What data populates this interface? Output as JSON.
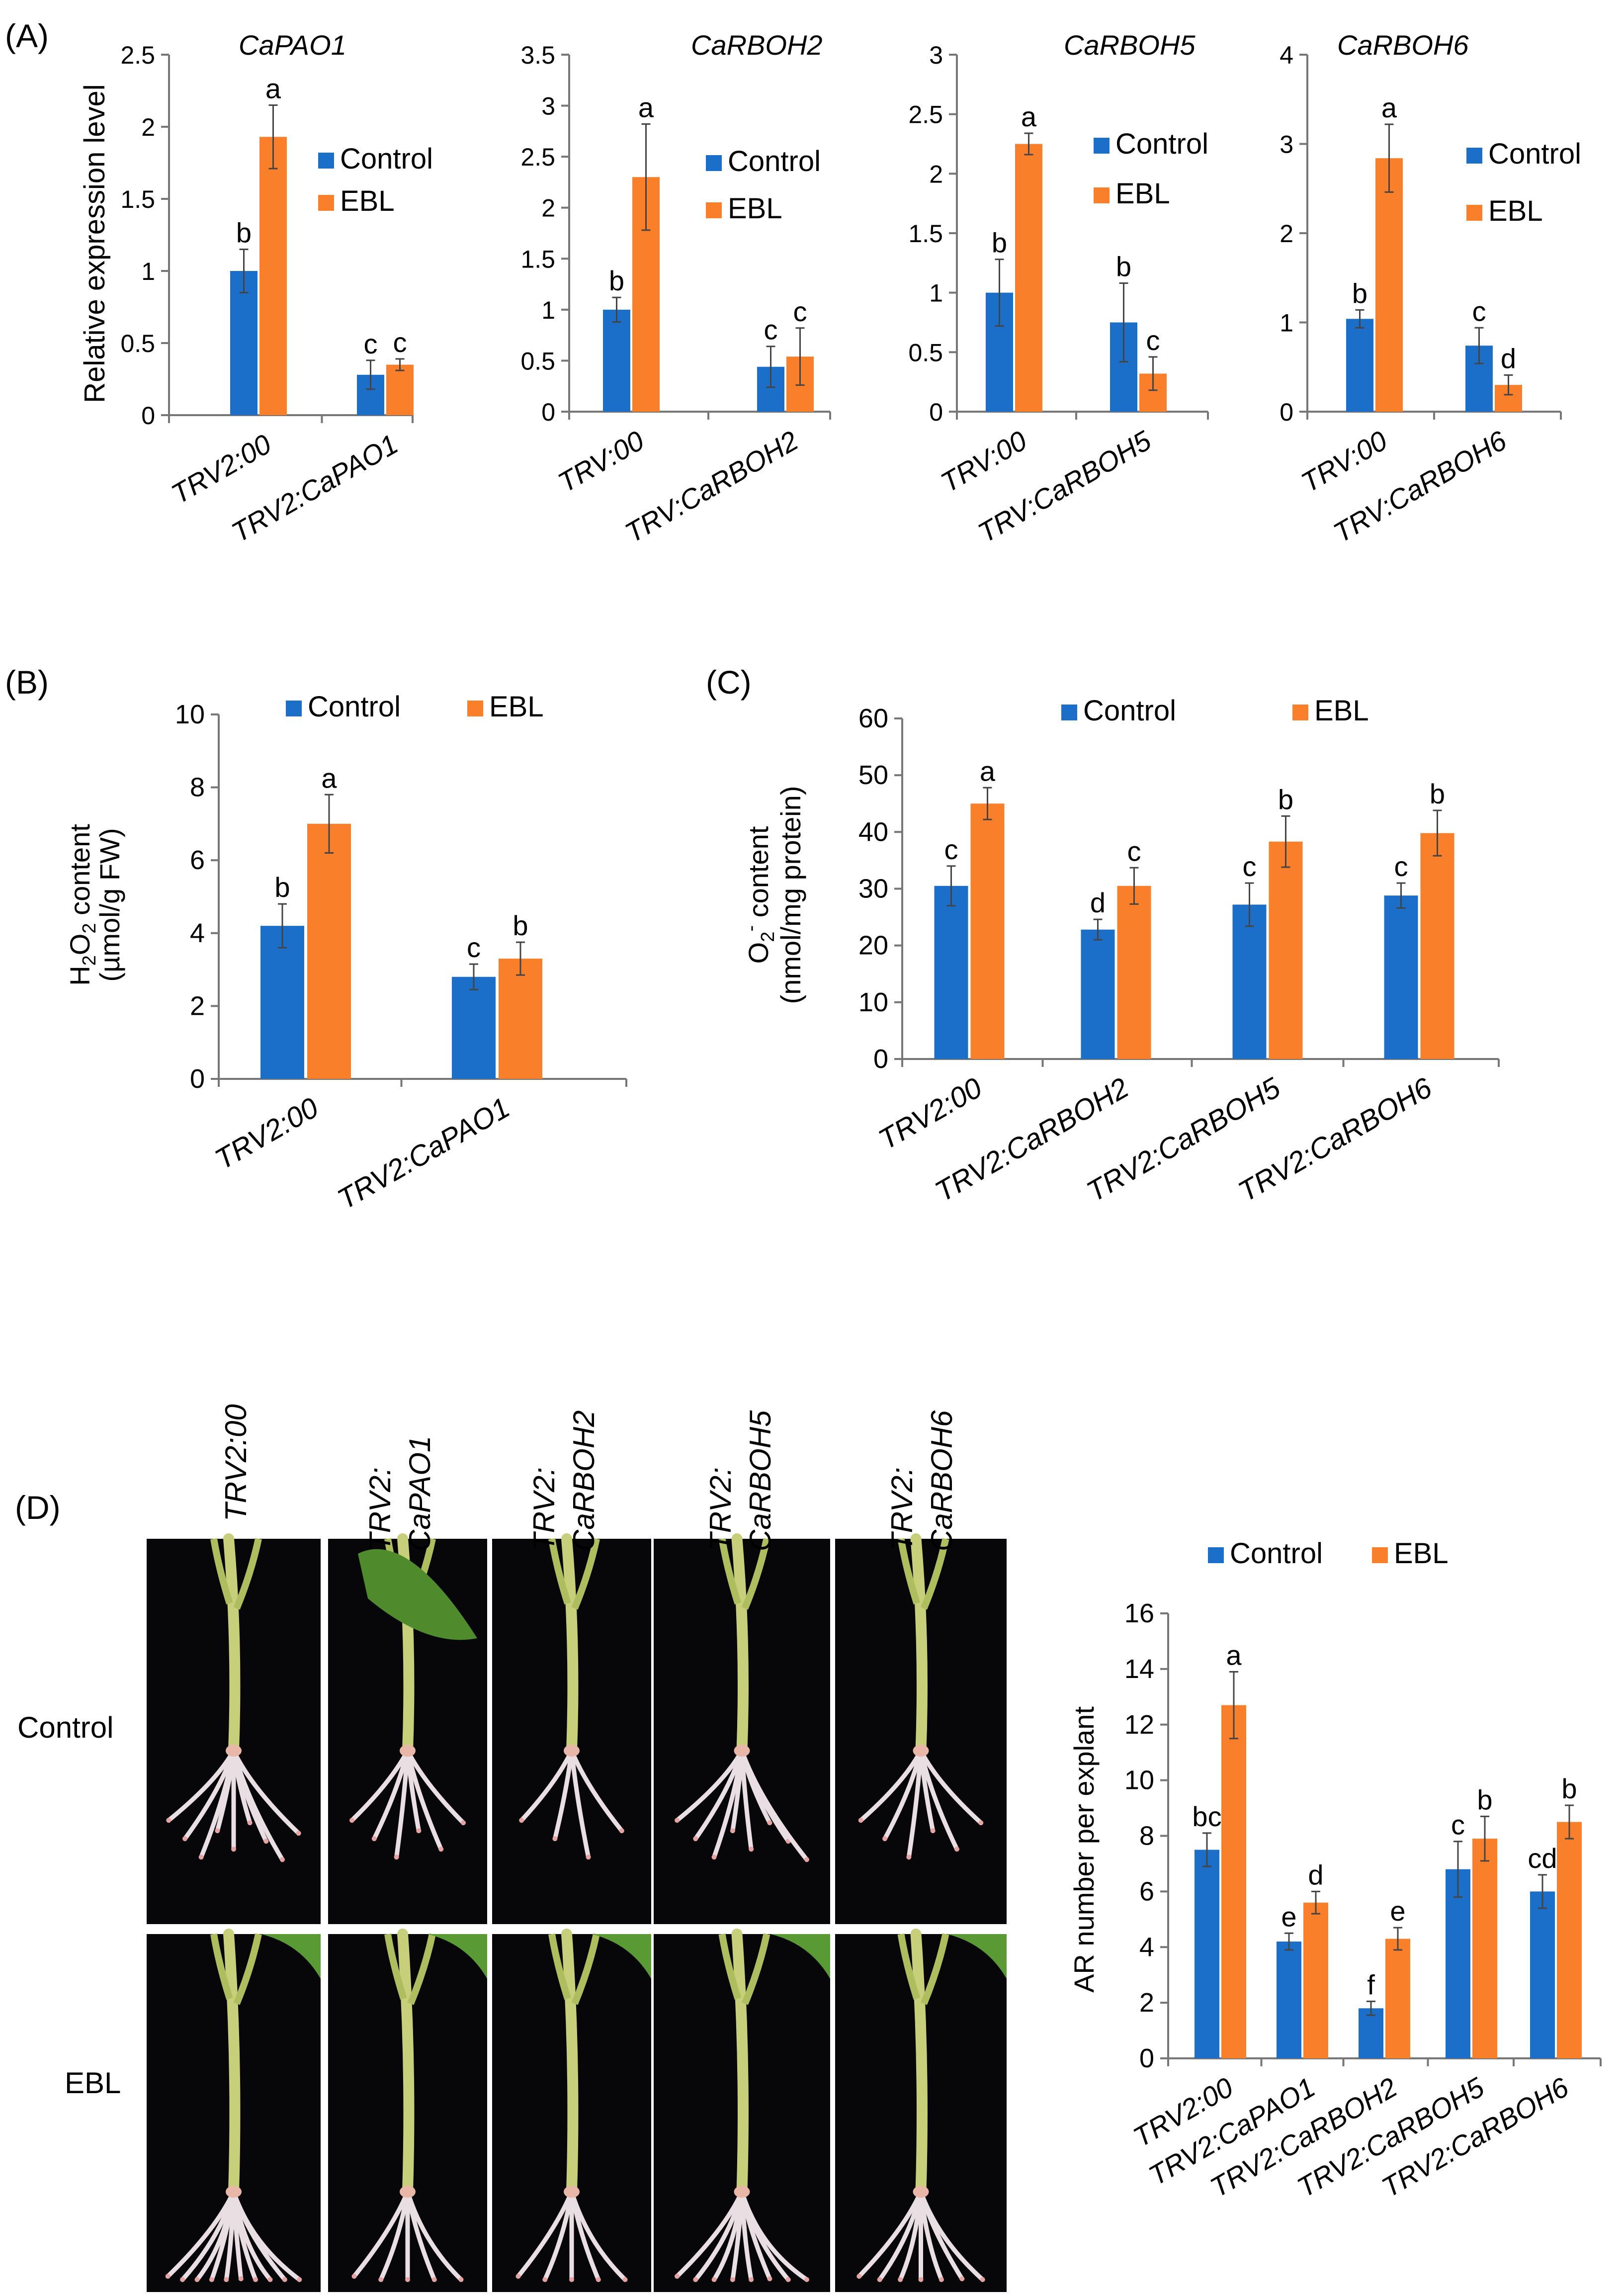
{
  "colors": {
    "control": "#1b6fc9",
    "ebl": "#fa7f2a",
    "axis": "#777777",
    "photo_bg": "#07070a"
  },
  "panels": {
    "A": {
      "label": "(A)",
      "ylabel": "Relative expression level"
    },
    "B": {
      "label": "(B)",
      "ylabel_line1_html": "H2O2 content",
      "ylabel_line2": "(µmol/g FW)"
    },
    "C": {
      "label": "(C)",
      "ylabel_line1_html": "O2- content",
      "ylabel_line2": "(nmol/mg protein)"
    },
    "D": {
      "label": "(D)",
      "row_labels": [
        "Control",
        "EBL"
      ],
      "column_labels": [
        {
          "line1": "TRV2:00",
          "line2": ""
        },
        {
          "line1": "TRV2:",
          "line2": "CaPAO1"
        },
        {
          "line1": "TRV2:",
          "line2": "CaRBOH2"
        },
        {
          "line1": "TRV2:",
          "line2": "CaRBOH5"
        },
        {
          "line1": "TRV2:",
          "line2": "CaRBOH6"
        }
      ]
    }
  },
  "legend": {
    "control": "Control",
    "ebl": "EBL"
  },
  "chart_data": [
    {
      "id": "A1",
      "type": "bar",
      "title": "CaPAO1",
      "ylabel": "Relative expression level",
      "ylim": [
        0,
        2.5
      ],
      "yticks": [
        "0",
        "0.5",
        "1",
        "1.5",
        "2",
        "2.5"
      ],
      "categories": [
        "TRV2:00",
        "TRV2:CaPAO1"
      ],
      "series": [
        {
          "name": "Control",
          "values": [
            1.0,
            0.28
          ],
          "errors": [
            0.15,
            0.1
          ],
          "letters": [
            "b",
            "c"
          ]
        },
        {
          "name": "EBL",
          "values": [
            1.93,
            0.35
          ],
          "errors": [
            0.22,
            0.04
          ],
          "letters": [
            "a",
            "c"
          ]
        }
      ]
    },
    {
      "id": "A2",
      "type": "bar",
      "title": "CaRBOH2",
      "ylim": [
        0,
        3.5
      ],
      "yticks": [
        "0",
        "0.5",
        "1",
        "1.5",
        "2",
        "2.5",
        "3",
        "3.5"
      ],
      "categories": [
        "TRV:00",
        "TRV:CaRBOH2"
      ],
      "series": [
        {
          "name": "Control",
          "values": [
            1.0,
            0.44
          ],
          "errors": [
            0.12,
            0.2
          ],
          "letters": [
            "b",
            "c"
          ]
        },
        {
          "name": "EBL",
          "values": [
            2.3,
            0.54
          ],
          "errors": [
            0.52,
            0.28
          ],
          "letters": [
            "a",
            "c"
          ]
        }
      ]
    },
    {
      "id": "A3",
      "type": "bar",
      "title": "CaRBOH5",
      "ylim": [
        0,
        3
      ],
      "yticks": [
        "0",
        "0.5",
        "1",
        "1.5",
        "2",
        "2.5",
        "3"
      ],
      "categories": [
        "TRV:00",
        "TRV:CaRBOH5"
      ],
      "series": [
        {
          "name": "Control",
          "values": [
            1.0,
            0.75
          ],
          "errors": [
            0.28,
            0.33
          ],
          "letters": [
            "b",
            "b"
          ]
        },
        {
          "name": "EBL",
          "values": [
            2.25,
            0.32
          ],
          "errors": [
            0.09,
            0.14
          ],
          "letters": [
            "a",
            "c"
          ]
        }
      ]
    },
    {
      "id": "A4",
      "type": "bar",
      "title": "CaRBOH6",
      "ylim": [
        0,
        4
      ],
      "yticks": [
        "0",
        "1",
        "2",
        "3",
        "4"
      ],
      "categories": [
        "TRV:00",
        "TRV:CaRBOH6"
      ],
      "series": [
        {
          "name": "Control",
          "values": [
            1.04,
            0.74
          ],
          "errors": [
            0.1,
            0.2
          ],
          "letters": [
            "b",
            "c"
          ]
        },
        {
          "name": "EBL",
          "values": [
            2.84,
            0.3
          ],
          "errors": [
            0.38,
            0.11
          ],
          "letters": [
            "a",
            "d"
          ]
        }
      ]
    },
    {
      "id": "B",
      "type": "bar",
      "ylabel": "H2O2 content (µmol/g FW)",
      "ylim": [
        0,
        10
      ],
      "yticks": [
        "0",
        "2",
        "4",
        "6",
        "8",
        "10"
      ],
      "categories": [
        "TRV2:00",
        "TRV2:CaPAO1"
      ],
      "series": [
        {
          "name": "Control",
          "values": [
            4.2,
            2.8
          ],
          "errors": [
            0.6,
            0.35
          ],
          "letters": [
            "b",
            "c"
          ]
        },
        {
          "name": "EBL",
          "values": [
            7.0,
            3.3
          ],
          "errors": [
            0.8,
            0.45
          ],
          "letters": [
            "a",
            "b"
          ]
        }
      ]
    },
    {
      "id": "C",
      "type": "bar",
      "ylabel": "O2- content (nmol/mg protein)",
      "ylim": [
        0,
        60
      ],
      "yticks": [
        "0",
        "10",
        "20",
        "30",
        "40",
        "50",
        "60"
      ],
      "categories": [
        "TRV2:00",
        "TRV2:CaRBOH2",
        "TRV2:CaRBOH5",
        "TRV2:CaRBOH6"
      ],
      "series": [
        {
          "name": "Control",
          "values": [
            30.5,
            22.8,
            27.2,
            28.8
          ],
          "errors": [
            3.5,
            1.8,
            3.8,
            2.2
          ],
          "letters": [
            "c",
            "d",
            "c",
            "c"
          ]
        },
        {
          "name": "EBL",
          "values": [
            45.0,
            30.5,
            38.3,
            39.8
          ],
          "errors": [
            2.8,
            3.2,
            4.5,
            4.0
          ],
          "letters": [
            "a",
            "c",
            "b",
            "b"
          ]
        }
      ]
    },
    {
      "id": "D",
      "type": "bar",
      "ylabel": "AR number per explant",
      "ylim": [
        0,
        16
      ],
      "yticks": [
        "0",
        "2",
        "4",
        "6",
        "8",
        "10",
        "12",
        "14",
        "16"
      ],
      "categories": [
        "TRV2:00",
        "TRV2:CaPAO1",
        "TRV2:CaRBOH2",
        "TRV2:CaRBOH5",
        "TRV2:CaRBOH6"
      ],
      "series": [
        {
          "name": "Control",
          "values": [
            7.5,
            4.2,
            1.8,
            6.8,
            6.0
          ],
          "errors": [
            0.6,
            0.3,
            0.25,
            1.0,
            0.6
          ],
          "letters": [
            "bc",
            "e",
            "f",
            "c",
            "cd"
          ]
        },
        {
          "name": "EBL",
          "values": [
            12.7,
            5.6,
            4.3,
            7.9,
            8.5
          ],
          "errors": [
            1.2,
            0.4,
            0.4,
            0.8,
            0.6
          ],
          "letters": [
            "a",
            "d",
            "e",
            "b",
            "b"
          ]
        }
      ]
    }
  ]
}
